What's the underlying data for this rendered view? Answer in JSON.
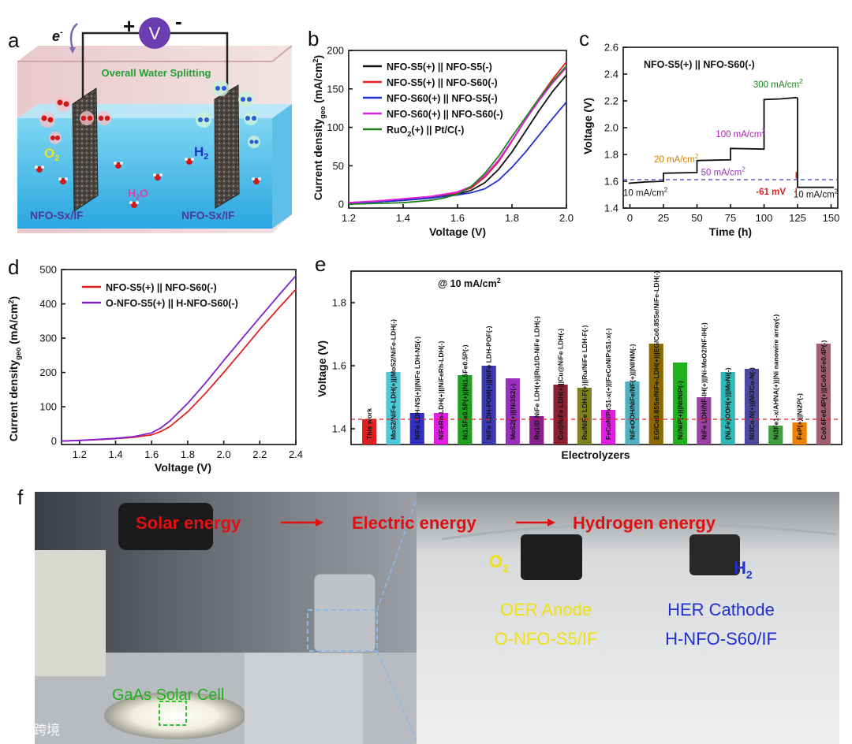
{
  "panels": {
    "a": "a",
    "b": "b",
    "c": "c",
    "d": "d",
    "e": "e",
    "f": "f"
  },
  "schematic": {
    "electron": "e",
    "electron_sup": "-",
    "plus": "+",
    "minus": "-",
    "volt": "V",
    "title": "Overall Water Splitting",
    "o2": "O",
    "o2_sub": "2",
    "h2": "H",
    "h2_sub": "2",
    "h2o": "H",
    "h2o_sub": "2",
    "h2o_tail": "O",
    "left_electrode": "NFO-Sx/IF",
    "right_electrode": "NFO-Sx/IF"
  },
  "chart_data": [
    {
      "id": "b",
      "type": "line",
      "xlabel": "Voltage (V)",
      "ylabel_main": "Current density",
      "ylabel_sub": "geo",
      "ylabel_unit": " (mA/cm",
      "ylabel_sup": "2",
      "ylabel_end": ")",
      "xlim": [
        1.2,
        2.0
      ],
      "ylim": [
        -5,
        200
      ],
      "xticks": [
        "1.2",
        "1.4",
        "1.6",
        "1.8",
        "2.0"
      ],
      "xtick_vals": [
        1.2,
        1.4,
        1.6,
        1.8,
        2.0
      ],
      "yticks": [
        "0",
        "50",
        "100",
        "150",
        "200"
      ],
      "ytick_vals": [
        0,
        50,
        100,
        150,
        200
      ],
      "series": [
        {
          "name": "NFO-S5(+) || NFO-S5(-)",
          "color": "#111111",
          "x": [
            1.2,
            1.3,
            1.4,
            1.5,
            1.6,
            1.65,
            1.7,
            1.75,
            1.8,
            1.85,
            1.9,
            1.95,
            2.0
          ],
          "y": [
            1,
            3,
            5,
            8,
            13,
            18,
            28,
            45,
            68,
            95,
            122,
            147,
            168
          ]
        },
        {
          "name": "NFO-S5(+) || NFO-S60(-)",
          "color": "#e02020",
          "x": [
            1.2,
            1.3,
            1.4,
            1.5,
            1.6,
            1.65,
            1.7,
            1.75,
            1.8,
            1.85,
            1.9,
            1.95,
            2.0
          ],
          "y": [
            2,
            4,
            7,
            10,
            15,
            21,
            35,
            55,
            82,
            110,
            138,
            163,
            185
          ]
        },
        {
          "name": "NFO-S60(+) || NFO-S5(-)",
          "color": "#2030d0",
          "x": [
            1.2,
            1.3,
            1.4,
            1.5,
            1.6,
            1.65,
            1.7,
            1.75,
            1.8,
            1.85,
            1.9,
            1.95,
            2.0
          ],
          "y": [
            1,
            3,
            5,
            8,
            12,
            15,
            20,
            31,
            48,
            68,
            90,
            112,
            133
          ]
        },
        {
          "name": "NFO-S60(+) || NFO-S60(-)",
          "color": "#e020e0",
          "x": [
            1.2,
            1.3,
            1.4,
            1.5,
            1.6,
            1.65,
            1.7,
            1.75,
            1.8,
            1.85,
            1.9,
            1.95,
            2.0
          ],
          "y": [
            2,
            4,
            7,
            10,
            16,
            23,
            37,
            57,
            83,
            110,
            135,
            158,
            178
          ]
        },
        {
          "name": "RuO2(+) || Pt/C(-)",
          "name_parts": [
            "RuO",
            "2",
            "(+) || Pt/C(-)"
          ],
          "color": "#208020",
          "x": [
            1.2,
            1.3,
            1.4,
            1.5,
            1.55,
            1.6,
            1.65,
            1.7,
            1.75,
            1.8,
            1.85,
            1.9,
            1.95,
            2.0
          ],
          "y": [
            0,
            1,
            2,
            5,
            8,
            13,
            23,
            40,
            62,
            88,
            113,
            138,
            160,
            180
          ]
        }
      ]
    },
    {
      "id": "c",
      "type": "line",
      "title": "NFO-S5(+) || NFO-S60(-)",
      "xlabel": "Time (h)",
      "ylabel": "Voltage (V)",
      "xlim": [
        -5,
        155
      ],
      "ylim": [
        1.4,
        2.6
      ],
      "xticks": [
        "0",
        "25",
        "50",
        "75",
        "100",
        "125",
        "150"
      ],
      "xtick_vals": [
        0,
        25,
        50,
        75,
        100,
        125,
        150
      ],
      "yticks": [
        "1.4",
        "1.6",
        "1.8",
        "2.0",
        "2.2",
        "2.4",
        "2.6"
      ],
      "ytick_vals": [
        1.4,
        1.6,
        1.8,
        2.0,
        2.2,
        2.4,
        2.6
      ],
      "series": [
        {
          "name": "stability",
          "color": "#111111",
          "x": [
            -1,
            12,
            25,
            25,
            50,
            50,
            75,
            75,
            100,
            100,
            112,
            124,
            125,
            125,
            152
          ],
          "y": [
            1.585,
            1.595,
            1.6,
            1.66,
            1.665,
            1.755,
            1.76,
            1.845,
            1.84,
            2.21,
            2.215,
            2.225,
            2.22,
            1.555,
            1.555
          ]
        }
      ],
      "ref_line": {
        "y": 1.612,
        "color": "#3030c0"
      },
      "annotations": [
        {
          "text": "10 mA/cm",
          "sup": "2",
          "color": "#111111",
          "x": -5,
          "y": 1.49
        },
        {
          "text": "20 mA/cm",
          "sup": "2",
          "color": "#d08000",
          "x": 18,
          "y": 1.74
        },
        {
          "text": "50 mA/cm",
          "sup": "2",
          "color": "#9a30c0",
          "x": 53,
          "y": 1.645
        },
        {
          "text": "100 mA/cm",
          "sup": "2",
          "color": "#b020b0",
          "x": 64,
          "y": 1.93
        },
        {
          "text": "300 mA/cm",
          "sup": "2",
          "color": "#208020",
          "x": 92,
          "y": 2.3
        },
        {
          "text": "10 mA/cm",
          "sup": "2",
          "color": "#111111",
          "x": 122,
          "y": 1.48
        },
        {
          "text": "-61 mV",
          "color": "#e02020",
          "x": 94,
          "y": 1.5
        }
      ]
    },
    {
      "id": "d",
      "type": "line",
      "xlabel": "Voltage (V)",
      "ylabel_main": "Current density",
      "ylabel_sub": "geo",
      "ylabel_unit": " (mA/cm",
      "ylabel_sup": "2",
      "ylabel_end": ")",
      "xlim": [
        1.1,
        2.4
      ],
      "ylim": [
        -10,
        500
      ],
      "xticks": [
        "1.2",
        "1.4",
        "1.6",
        "1.8",
        "2.0",
        "2.2",
        "2.4"
      ],
      "xtick_vals": [
        1.2,
        1.4,
        1.6,
        1.8,
        2.0,
        2.2,
        2.4
      ],
      "yticks": [
        "0",
        "100",
        "200",
        "300",
        "400",
        "500"
      ],
      "ytick_vals": [
        0,
        100,
        200,
        300,
        400,
        500
      ],
      "series": [
        {
          "name": "NFO-S5(+) || NFO-S60(-)",
          "color": "#e02020",
          "x": [
            1.1,
            1.2,
            1.3,
            1.4,
            1.5,
            1.6,
            1.65,
            1.7,
            1.8,
            1.9,
            2.0,
            2.1,
            2.2,
            2.3,
            2.4
          ],
          "y": [
            0,
            2,
            4,
            7,
            11,
            18,
            28,
            42,
            85,
            140,
            200,
            262,
            325,
            385,
            442
          ]
        },
        {
          "name": "O-NFO-S5(+) || H-NFO-S60(-)",
          "color": "#8020d0",
          "x": [
            1.1,
            1.2,
            1.3,
            1.4,
            1.5,
            1.6,
            1.65,
            1.7,
            1.8,
            1.9,
            2.0,
            2.1,
            2.2,
            2.3,
            2.4
          ],
          "y": [
            0,
            2,
            5,
            8,
            13,
            24,
            38,
            58,
            110,
            170,
            235,
            298,
            360,
            422,
            482
          ]
        }
      ]
    },
    {
      "id": "e",
      "type": "bar",
      "title": "@ 10 mA/cm",
      "title_sup": "2",
      "xlabel": "Electrolyzers",
      "ylabel": "Voltage (V)",
      "ylim": [
        1.35,
        1.9
      ],
      "yticks": [
        "1.4",
        "1.6",
        "1.8"
      ],
      "ytick_vals": [
        1.4,
        1.6,
        1.8
      ],
      "ref_line": {
        "y": 1.43,
        "color": "#e02020"
      },
      "categories": [
        "This work",
        "MoS2/NiFe-LDH(+)||MoS2/NiFe-LDH(-)",
        "NiFe LDH-NS(+)||NiFe LDH-NS(-)",
        "NiFeRh-LDH(+)||NiFeRh-LDH(-)",
        "Ni1.5Fe0.5P(+)||Ni1.5Fe0.5P(-)",
        "NiFe LDH-POM(+)||NiFe LDH-POF(-)",
        "MoS2(+)||Ni3S2(-)",
        "Ru1/D-NiFe LDH(+)||Ru1/D-NiFe LDH(-)",
        "Cu@NiFe LDH(+)||Cu@NiFe LDH(-)",
        "Ru/NiFe LDH-F(+)||Ru/NiFe LDH-F(-)",
        "FeCoNiPxS1-x(+)||FeCoNiPxS1-x(-)",
        "NiFeOOH/NiFe/NF(+)||NI/NM(-)",
        "EG/Co0.85Se/NiFe-LDH(+)||EG/Co0.85Se/NiFe-LDH(-)",
        "Ni/NiP(+)||Ni/NiP(-)",
        "NiFe LDH/NF-IH(+)||Ni-MoO2/NF-IH(-)",
        "(Ni,Fe)OOH(+)||MoNi(-)",
        "Ni3Co-N(+)||Ni3Co-N(-)",
        "Ni3Fe1-x/AHNA(+)||Ni nanowire array(-)",
        "FeP(+)||Ni2P(-)",
        "Co0.6Fe0.4P(+)||Co0.6Fe0.4P(-)"
      ],
      "values": [
        1.43,
        1.58,
        1.45,
        1.45,
        1.57,
        1.6,
        1.56,
        1.44,
        1.54,
        1.53,
        1.46,
        1.55,
        1.67,
        1.61,
        1.5,
        1.58,
        1.59,
        1.41,
        1.42,
        1.67
      ],
      "colors": [
        "#e02020",
        "#50c8d8",
        "#3030c0",
        "#e020e0",
        "#20a020",
        "#3a3ab0",
        "#9a30c0",
        "#8a2090",
        "#8a2030",
        "#808020",
        "#e020e0",
        "#50b0c0",
        "#8a6a00",
        "#20b020",
        "#9a40a0",
        "#30b8b8",
        "#4a4aa0",
        "#40a040",
        "#f08000",
        "#a06070"
      ]
    }
  ],
  "photo": {
    "solar": "Solar energy",
    "electric": "Electric energy",
    "hydrogen": "Hydrogen energy",
    "gaas": "GaAs Solar Cell",
    "o2": "O",
    "o2_sub": "2",
    "h2": "H",
    "h2_sub": "2",
    "anode_title": "OER Anode",
    "anode_name": "O-NFO-S5/IF",
    "cathode_title": "HER Cathode",
    "cathode_name": "H-NFO-S60/IF",
    "watermark": "大数跨境"
  }
}
